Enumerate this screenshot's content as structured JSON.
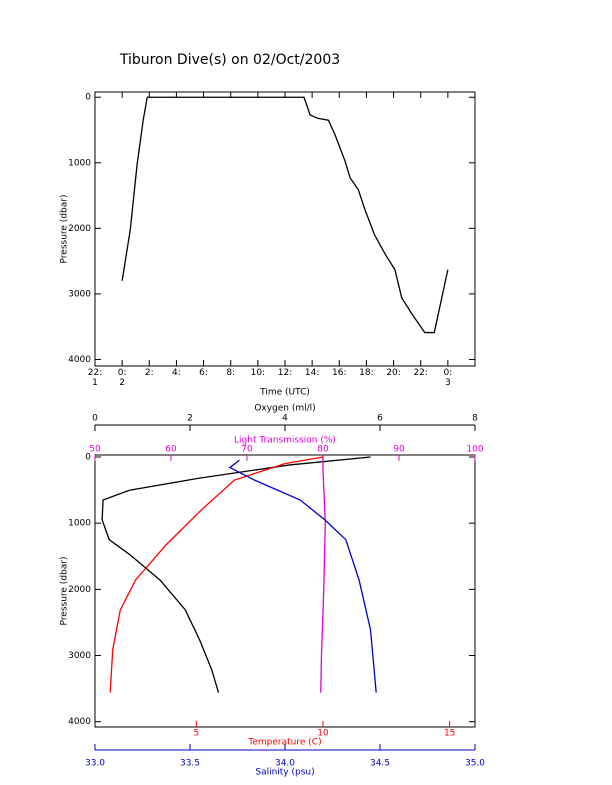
{
  "chart_data": [
    {
      "type": "line",
      "title": "Tiburon Dive(s) on 02/Oct/2003",
      "x_label": "Time (UTC)",
      "y_label": "Pressure (dbar)",
      "y_inverted": true,
      "color": "#000000",
      "xlim": [
        -2,
        26
      ],
      "xticks": [
        {
          "value": -2,
          "label": "22:\n1"
        },
        {
          "value": 0,
          "label": "0:\n2"
        },
        {
          "value": 2,
          "label": "2:"
        },
        {
          "value": 4,
          "label": "4:"
        },
        {
          "value": 6,
          "label": "6:"
        },
        {
          "value": 8,
          "label": "8:"
        },
        {
          "value": 10,
          "label": "10:"
        },
        {
          "value": 12,
          "label": "12:"
        },
        {
          "value": 14,
          "label": "14:"
        },
        {
          "value": 16,
          "label": "16:"
        },
        {
          "value": 18,
          "label": "18:"
        },
        {
          "value": 20,
          "label": "20:"
        },
        {
          "value": 22,
          "label": "22:"
        },
        {
          "value": 24,
          "label": "0:\n3"
        }
      ],
      "ylim": [
        -80,
        4100
      ],
      "yticks": [
        0,
        1000,
        2000,
        3000,
        4000
      ],
      "x": [
        0,
        0.6,
        1.1,
        1.55,
        1.85,
        13.4,
        13.85,
        14.4,
        15.2,
        15.7,
        16.4,
        16.8,
        17.4,
        17.9,
        18.6,
        19.4,
        20.1,
        20.6,
        21.4,
        22.3,
        23.0,
        24.0
      ],
      "values": [
        2800,
        2020,
        1030,
        350,
        0,
        0,
        270,
        320,
        350,
        580,
        960,
        1230,
        1410,
        1720,
        2100,
        2400,
        2630,
        3060,
        3320,
        3590,
        3590,
        2630
      ]
    },
    {
      "type": "profile",
      "y_label": "Pressure (dbar)",
      "y_inverted": true,
      "ylim": [
        -30,
        4080
      ],
      "yticks": [
        0,
        1000,
        2000,
        3000,
        4000
      ],
      "series": [
        {
          "name": "Oxygen (ml/l)",
          "color": "#000000",
          "xlim": [
            0,
            8
          ],
          "xticks": [
            0,
            2,
            4,
            6,
            8
          ],
          "pressure": [
            0,
            120,
            320,
            500,
            650,
            950,
            1250,
            1480,
            1860,
            2310,
            2760,
            3220,
            3560
          ],
          "values": [
            5.8,
            4.1,
            2.2,
            0.74,
            0.17,
            0.15,
            0.3,
            0.74,
            1.37,
            1.9,
            2.2,
            2.46,
            2.6
          ]
        },
        {
          "name": "Light Transmission (%)",
          "color": "#e000e0",
          "xlim": [
            50,
            100
          ],
          "xticks": [
            50,
            60,
            70,
            80,
            90,
            100
          ],
          "pressure": [
            0,
            200,
            1000,
            2000,
            3000,
            3560
          ],
          "values": [
            80,
            80,
            80.3,
            80.1,
            79.8,
            79.7
          ]
        },
        {
          "name": "Temperature (C)",
          "color": "#ff0000",
          "xlim": [
            1,
            16
          ],
          "xticks": [
            5,
            10,
            15
          ],
          "pressure": [
            0,
            100,
            350,
            800,
            1330,
            1860,
            2310,
            2910,
            3560
          ],
          "values": [
            10.0,
            8.5,
            6.5,
            5.2,
            3.8,
            2.6,
            2.0,
            1.7,
            1.6
          ]
        },
        {
          "name": "Salinity (psu)",
          "color": "#0000cc",
          "xlim": [
            33,
            35
          ],
          "xticks": [
            {
              "value": 33,
              "label": "33.0"
            },
            {
              "value": 33.5,
              "label": "33.5"
            },
            {
              "value": 34,
              "label": "34.0"
            },
            {
              "value": 34.5,
              "label": "34.5"
            },
            {
              "value": 35,
              "label": "35.0"
            }
          ],
          "pressure": [
            50,
            160,
            350,
            650,
            950,
            1250,
            1860,
            2610,
            3560
          ],
          "values": [
            33.76,
            33.71,
            33.84,
            34.08,
            34.21,
            34.32,
            34.39,
            34.45,
            34.48
          ]
        }
      ]
    }
  ]
}
